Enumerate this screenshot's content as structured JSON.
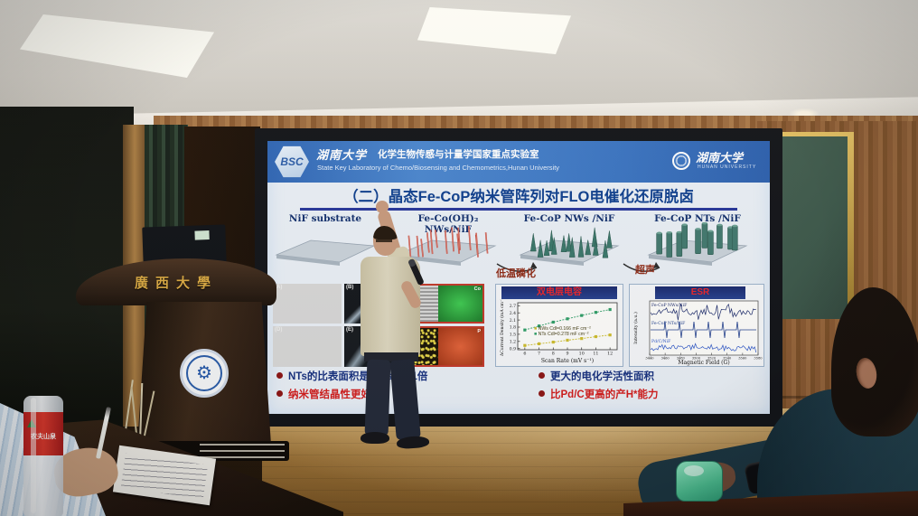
{
  "room": {
    "podium_text": "廣西大學",
    "bottle_brand": "农夫山泉"
  },
  "slide": {
    "header": {
      "logo": "BSC",
      "univ_script": "湖南大学",
      "lab_cn": "化学生物传感与计量学国家重点实验室",
      "lab_en": "State Key Laboratory of Chemo/Biosensing and Chemometrics,Hunan University",
      "right_univ_cn": "湖南大学",
      "right_univ_en": "HUNAN UNIVERSITY"
    },
    "title": "（二）晶态Fe-CoP纳米管阵列对FLO电催化还原脱卤",
    "scheme": {
      "labels": [
        "NiF substrate",
        "Fe-Co(OH)₂ NWs/NiF",
        "Fe-CoP NWs /NiF",
        "Fe-CoP NTs /NiF"
      ],
      "arrows": [
        "水热",
        "低温磷化",
        "超声"
      ]
    },
    "sem": {
      "panel_labels": [
        "(A)",
        "(B)",
        "(C)",
        "(D)",
        "(E)",
        "(F)"
      ],
      "map_labels": [
        "Co",
        "Fe",
        "P"
      ]
    },
    "chart_data": [
      {
        "type": "scatter",
        "title": "双电层电容",
        "xlabel": "Scan Rate (mV s⁻¹)",
        "ylabel": "ΔCurrent Density (mA cm⁻²)",
        "x": [
          6,
          7,
          8,
          9,
          10,
          11,
          12
        ],
        "xlim": [
          5.5,
          12.5
        ],
        "ylim": [
          0.9,
          2.7
        ],
        "yticks": [
          0.9,
          1.2,
          1.5,
          1.8,
          2.1,
          2.4,
          2.7
        ],
        "series": [
          {
            "name": "NTs Cdl=0.278 mF cm⁻²",
            "color": "#2f9e68",
            "values": [
              1.68,
              1.85,
              2.01,
              2.15,
              2.29,
              2.42,
              2.54
            ]
          },
          {
            "name": "NWs Cdl=0.166 mF cm⁻²",
            "color": "#cdbd2e",
            "values": [
              1.03,
              1.1,
              1.17,
              1.25,
              1.32,
              1.4,
              1.47
            ]
          }
        ],
        "legend": [
          "NWs Cdl=0.166 mF cm⁻²",
          "NTs Cdl=0.278 mF cm⁻²"
        ],
        "legend_position": "center",
        "grid": false
      },
      {
        "type": "line",
        "title": "ESR",
        "xlabel": "Magnetic Field (G)",
        "ylabel": "Intensity (a.u.)",
        "xticks": [
          3440,
          3460,
          3480,
          3500,
          3520,
          3540,
          3560,
          3580
        ],
        "traces": [
          "Fe-CoP NWs/NiF",
          "Fe-CoP NTs/NiF",
          "Pd/C/NiF"
        ],
        "trace_colors": [
          "#1b2a6b",
          "#23418f",
          "#2b55c8"
        ]
      }
    ],
    "bullets": {
      "left": [
        {
          "text": "NTs的比表面积是NWs的5.1倍",
          "color": "#16307f"
        },
        {
          "text": "纳米管结晶性更好",
          "color": "#d21d1d"
        }
      ],
      "right": [
        {
          "text": "更大的电化学活性面积",
          "color": "#16307f"
        },
        {
          "text": "比Pd/C更高的产H*能力",
          "color": "#d21d1d"
        }
      ]
    }
  }
}
